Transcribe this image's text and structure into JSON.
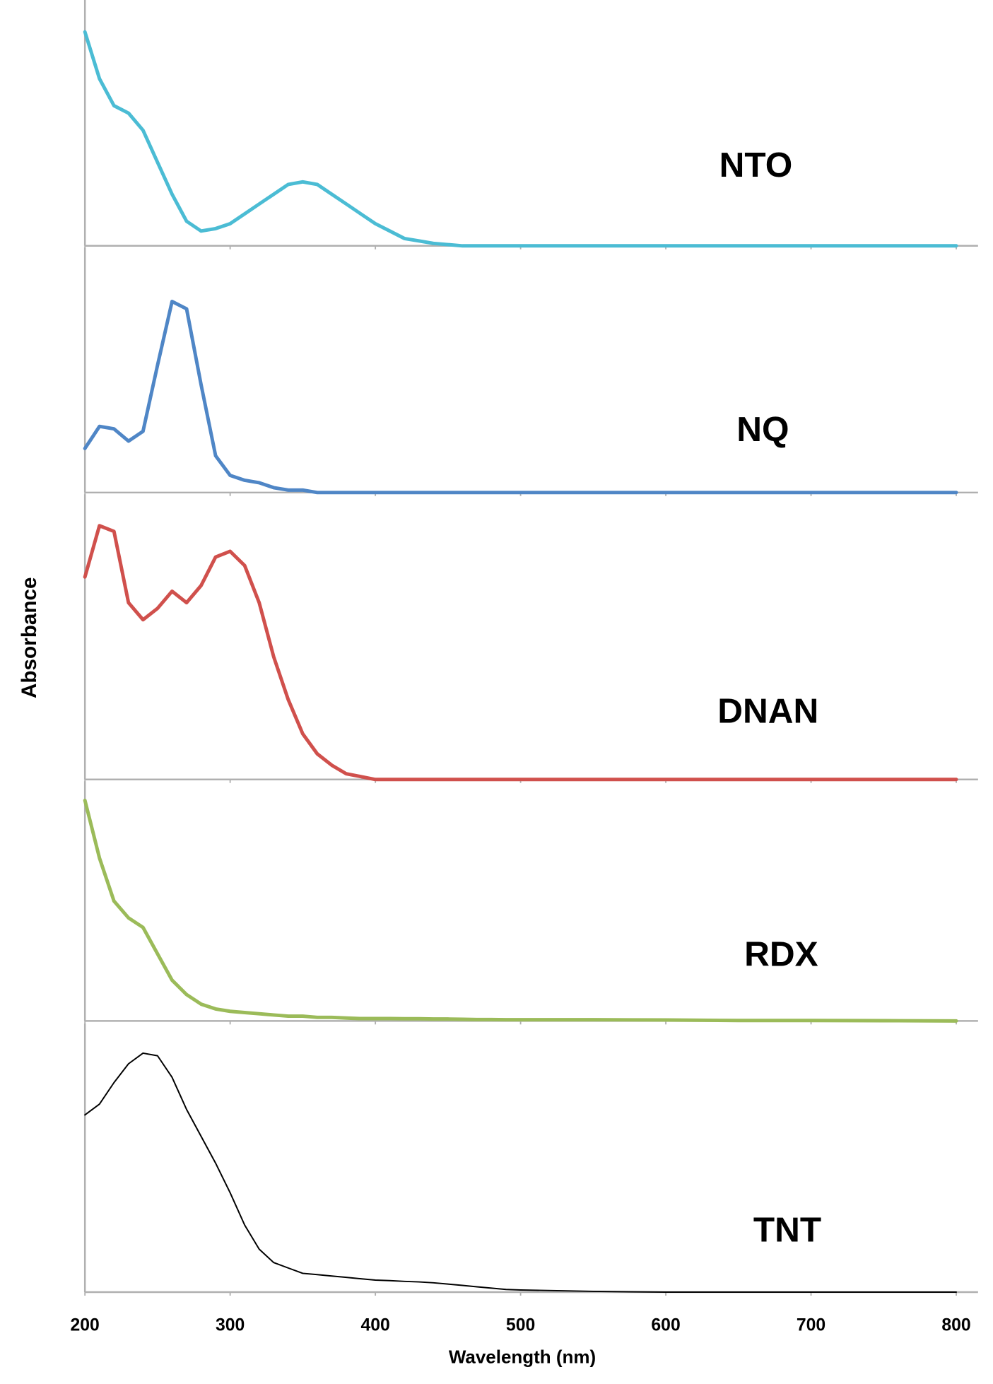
{
  "chart_data": {
    "type": "line",
    "x_label": "Wavelength (nm)",
    "y_label": "Absorbance",
    "x": [
      200,
      210,
      220,
      230,
      240,
      250,
      260,
      270,
      280,
      290,
      300,
      310,
      320,
      330,
      340,
      350,
      360,
      370,
      380,
      390,
      400,
      410,
      420,
      430,
      440,
      450,
      460,
      470,
      480,
      490,
      500,
      550,
      600,
      650,
      700,
      750,
      800
    ],
    "xlim": [
      200,
      815
    ],
    "xticks": [
      200,
      300,
      400,
      500,
      600,
      700,
      800
    ],
    "ylim": [
      0,
      1
    ],
    "series": [
      {
        "name": "NTO",
        "color": "#4bbcd4",
        "values": [
          0.87,
          0.68,
          0.57,
          0.54,
          0.47,
          0.34,
          0.21,
          0.1,
          0.06,
          0.07,
          0.09,
          0.13,
          0.17,
          0.21,
          0.25,
          0.26,
          0.25,
          0.21,
          0.17,
          0.13,
          0.09,
          0.06,
          0.03,
          0.02,
          0.01,
          0.005,
          0,
          0,
          0,
          0,
          0,
          0,
          0,
          0,
          0,
          0,
          0
        ]
      },
      {
        "name": "NQ",
        "color": "#4f86c6",
        "values": [
          0.18,
          0.27,
          0.26,
          0.21,
          0.25,
          0.52,
          0.78,
          0.75,
          0.44,
          0.15,
          0.07,
          0.05,
          0.04,
          0.02,
          0.01,
          0.01,
          0,
          0,
          0,
          0,
          0,
          0,
          0,
          0,
          0,
          0,
          0,
          0,
          0,
          0,
          0,
          0,
          0,
          0,
          0,
          0,
          0
        ]
      },
      {
        "name": "DNAN",
        "color": "#d0504c",
        "values": [
          0.71,
          0.89,
          0.87,
          0.62,
          0.56,
          0.6,
          0.66,
          0.62,
          0.68,
          0.78,
          0.8,
          0.75,
          0.62,
          0.43,
          0.28,
          0.16,
          0.09,
          0.05,
          0.02,
          0.01,
          0,
          0,
          0,
          0,
          0,
          0,
          0,
          0,
          0,
          0,
          0,
          0,
          0,
          0,
          0,
          0,
          0
        ]
      },
      {
        "name": "RDX",
        "color": "#9bbb59",
        "values": [
          0.92,
          0.68,
          0.5,
          0.43,
          0.39,
          0.28,
          0.17,
          0.11,
          0.07,
          0.05,
          0.04,
          0.035,
          0.03,
          0.025,
          0.02,
          0.02,
          0.015,
          0.015,
          0.012,
          0.01,
          0.01,
          0.01,
          0.009,
          0.009,
          0.008,
          0.008,
          0.007,
          0.006,
          0.006,
          0.005,
          0.005,
          0.005,
          0.004,
          0.002,
          0.002,
          0.001,
          0
        ]
      },
      {
        "name": "TNT",
        "color": "#000000",
        "values": [
          0.66,
          0.7,
          0.78,
          0.85,
          0.89,
          0.88,
          0.8,
          0.68,
          0.58,
          0.48,
          0.37,
          0.25,
          0.16,
          0.11,
          0.09,
          0.07,
          0.065,
          0.06,
          0.055,
          0.05,
          0.045,
          0.043,
          0.04,
          0.038,
          0.035,
          0.03,
          0.025,
          0.02,
          0.015,
          0.01,
          0.008,
          0.003,
          0,
          0,
          0,
          0,
          0
        ]
      }
    ]
  }
}
